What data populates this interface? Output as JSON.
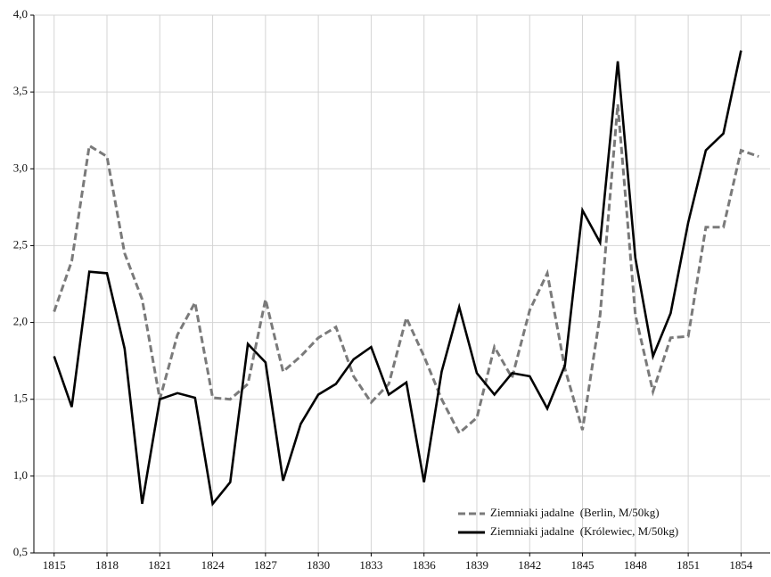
{
  "chart_data": {
    "type": "line",
    "x": [
      1815,
      1816,
      1817,
      1818,
      1819,
      1820,
      1821,
      1822,
      1823,
      1824,
      1825,
      1826,
      1827,
      1828,
      1829,
      1830,
      1831,
      1832,
      1833,
      1834,
      1835,
      1836,
      1837,
      1838,
      1839,
      1840,
      1841,
      1842,
      1843,
      1844,
      1845,
      1846,
      1847,
      1848,
      1849,
      1850,
      1851,
      1852,
      1853,
      1854,
      1855
    ],
    "series": [
      {
        "name": "Ziemniaki jadalne  (Berlin, M/50kg)",
        "color": "#7a7a7a",
        "dash": true,
        "values": [
          2.07,
          2.4,
          3.15,
          3.08,
          2.45,
          2.15,
          1.5,
          1.92,
          2.13,
          1.51,
          1.5,
          1.6,
          2.15,
          1.68,
          1.78,
          1.9,
          1.97,
          1.65,
          1.48,
          1.6,
          2.03,
          1.78,
          1.5,
          1.28,
          1.38,
          1.84,
          1.64,
          2.08,
          2.32,
          1.7,
          1.3,
          2.05,
          3.42,
          2.05,
          1.55,
          1.9,
          1.91,
          2.62,
          2.62,
          3.12,
          3.08
        ]
      },
      {
        "name": "Ziemniaki jadalne  (Królewiec, M/50kg)",
        "color": "#000000",
        "dash": false,
        "values": [
          1.78,
          1.45,
          2.33,
          2.32,
          1.83,
          0.82,
          1.5,
          1.54,
          1.51,
          0.82,
          0.96,
          1.86,
          1.74,
          0.97,
          1.34,
          1.53,
          1.6,
          1.76,
          1.84,
          1.53,
          1.61,
          0.96,
          1.68,
          2.1,
          1.67,
          1.53,
          1.67,
          1.65,
          1.44,
          1.72,
          2.73,
          2.52,
          3.7,
          2.42,
          1.78,
          2.06,
          2.65,
          3.12,
          3.23,
          3.77,
          null
        ]
      }
    ],
    "xlim": [
      1813.85,
      1855.65
    ],
    "xticks": [
      1815,
      1818,
      1821,
      1824,
      1827,
      1830,
      1833,
      1836,
      1839,
      1842,
      1845,
      1848,
      1851,
      1854
    ],
    "ylim": [
      0.5,
      4.0
    ],
    "yticks": [
      {
        "value": 0.5,
        "label": "0,5"
      },
      {
        "value": 1.0,
        "label": "1,0"
      },
      {
        "value": 1.5,
        "label": "1,5"
      },
      {
        "value": 2.0,
        "label": "2,0"
      },
      {
        "value": 2.5,
        "label": "2,5"
      },
      {
        "value": 3.0,
        "label": "3,0"
      },
      {
        "value": 3.5,
        "label": "3,5"
      },
      {
        "value": 4.0,
        "label": "4,0"
      }
    ],
    "grid": true,
    "legend": "lower right"
  }
}
